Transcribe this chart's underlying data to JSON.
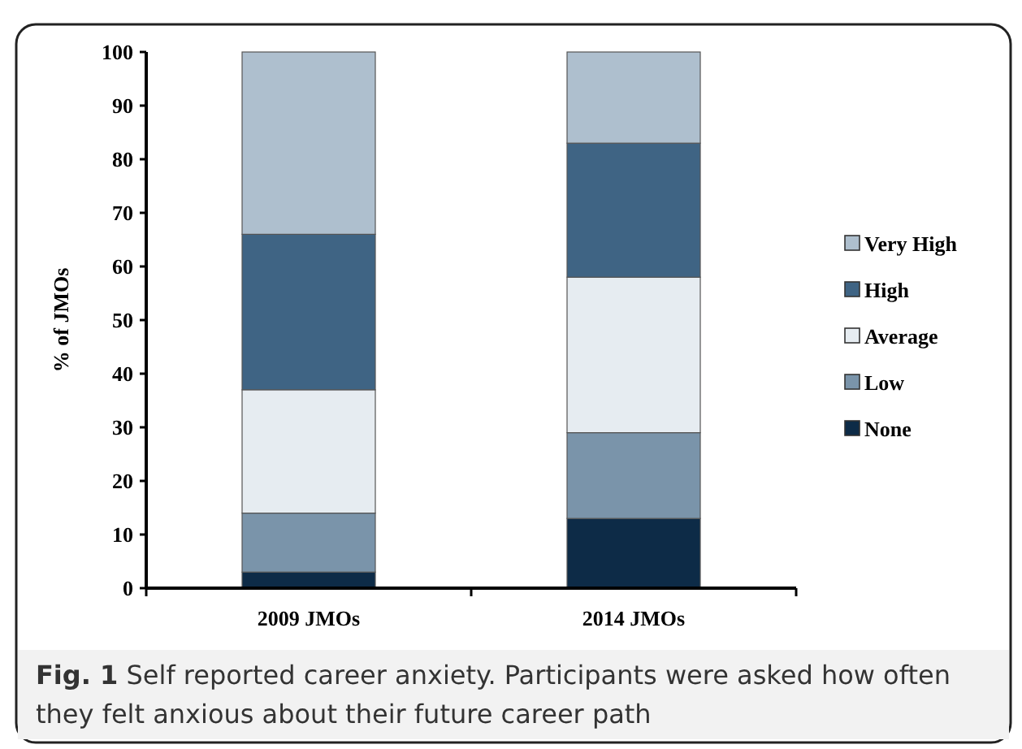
{
  "chart_data": {
    "type": "bar",
    "stacked": true,
    "categories": [
      "2009 JMOs",
      "2014 JMOs"
    ],
    "ylabel": "% of JMOs",
    "ylim": [
      0,
      100
    ],
    "yticks": [
      0,
      10,
      20,
      30,
      40,
      50,
      60,
      70,
      80,
      90,
      100
    ],
    "grid": false,
    "legend": "right",
    "series": [
      {
        "name": "None",
        "color": "#0d2b47",
        "values": [
          3,
          13
        ]
      },
      {
        "name": "Low",
        "color": "#7a94aa",
        "values": [
          11,
          16
        ]
      },
      {
        "name": "Average",
        "color": "#e6ecf1",
        "values": [
          23,
          29
        ]
      },
      {
        "name": "High",
        "color": "#3f6484",
        "values": [
          29,
          25
        ]
      },
      {
        "name": "Very High",
        "color": "#aebfce",
        "values": [
          34,
          17
        ]
      }
    ],
    "annotations": [
      "Fig. 1",
      "Self reported career anxiety. Participants were asked how often they felt anxious about their future career path"
    ]
  }
}
